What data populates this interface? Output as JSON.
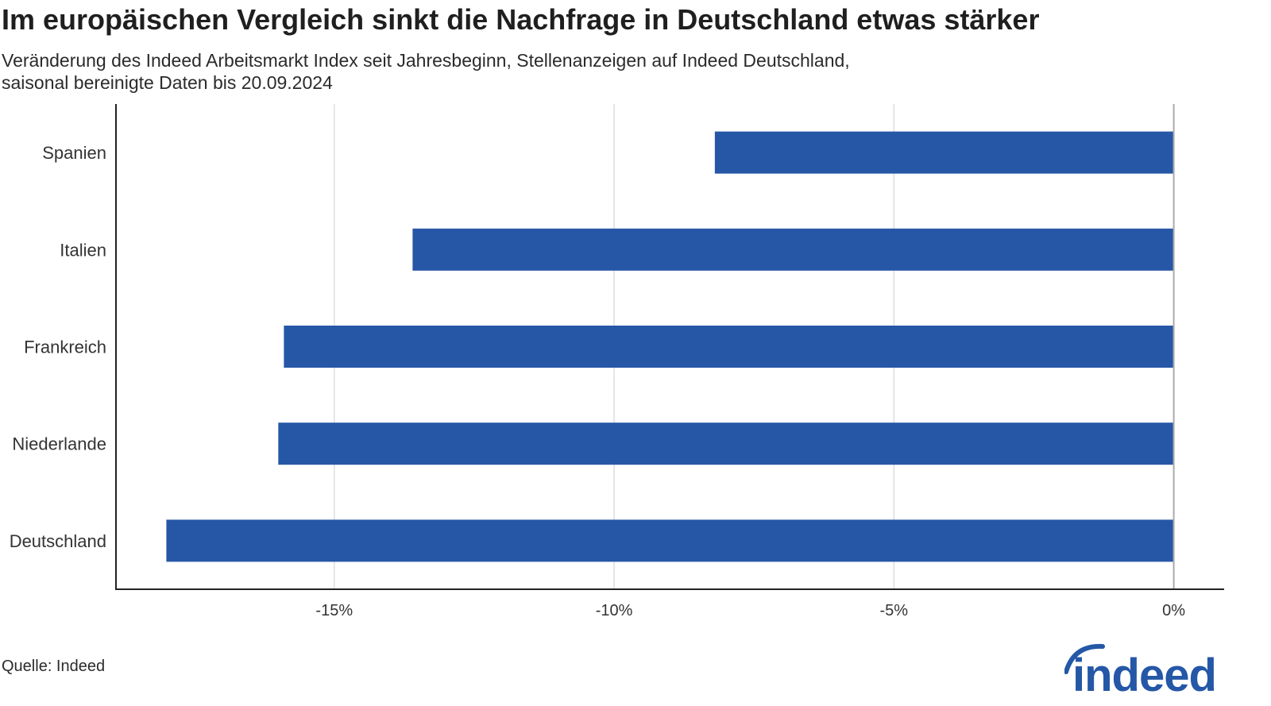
{
  "header": {
    "title": "Im europäischen Vergleich sinkt die Nachfrage in Deutschland etwas stärker",
    "subtitle_line1": "Veränderung des Indeed Arbeitsmarkt Index seit Jahresbeginn, Stellenanzeigen auf Indeed Deutschland,",
    "subtitle_line2": "saisonal bereinigte Daten bis 20.09.2024"
  },
  "footer": {
    "source": "Quelle: Indeed",
    "logo_text": "indeed"
  },
  "colors": {
    "bar": "#2657a6",
    "grid": "#dddddd",
    "axis": "#222222",
    "zero_line": "#aaaaaa",
    "logo": "#2557a7"
  },
  "chart_data": {
    "type": "bar",
    "orientation": "horizontal",
    "categories": [
      "Spanien",
      "Italien",
      "Frankreich",
      "Niederlande",
      "Deutschland"
    ],
    "values": [
      -8.2,
      -13.6,
      -15.9,
      -16.0,
      -18.0
    ],
    "xticks": [
      -15,
      -10,
      -5,
      0
    ],
    "xtick_labels": [
      "-15%",
      "-10%",
      "-5%",
      "0%"
    ],
    "xlim": [
      -18.9,
      0.9
    ],
    "grid": "vertical",
    "title": "Im europäischen Vergleich sinkt die Nachfrage in Deutschland etwas stärker",
    "xlabel": "",
    "ylabel": ""
  }
}
